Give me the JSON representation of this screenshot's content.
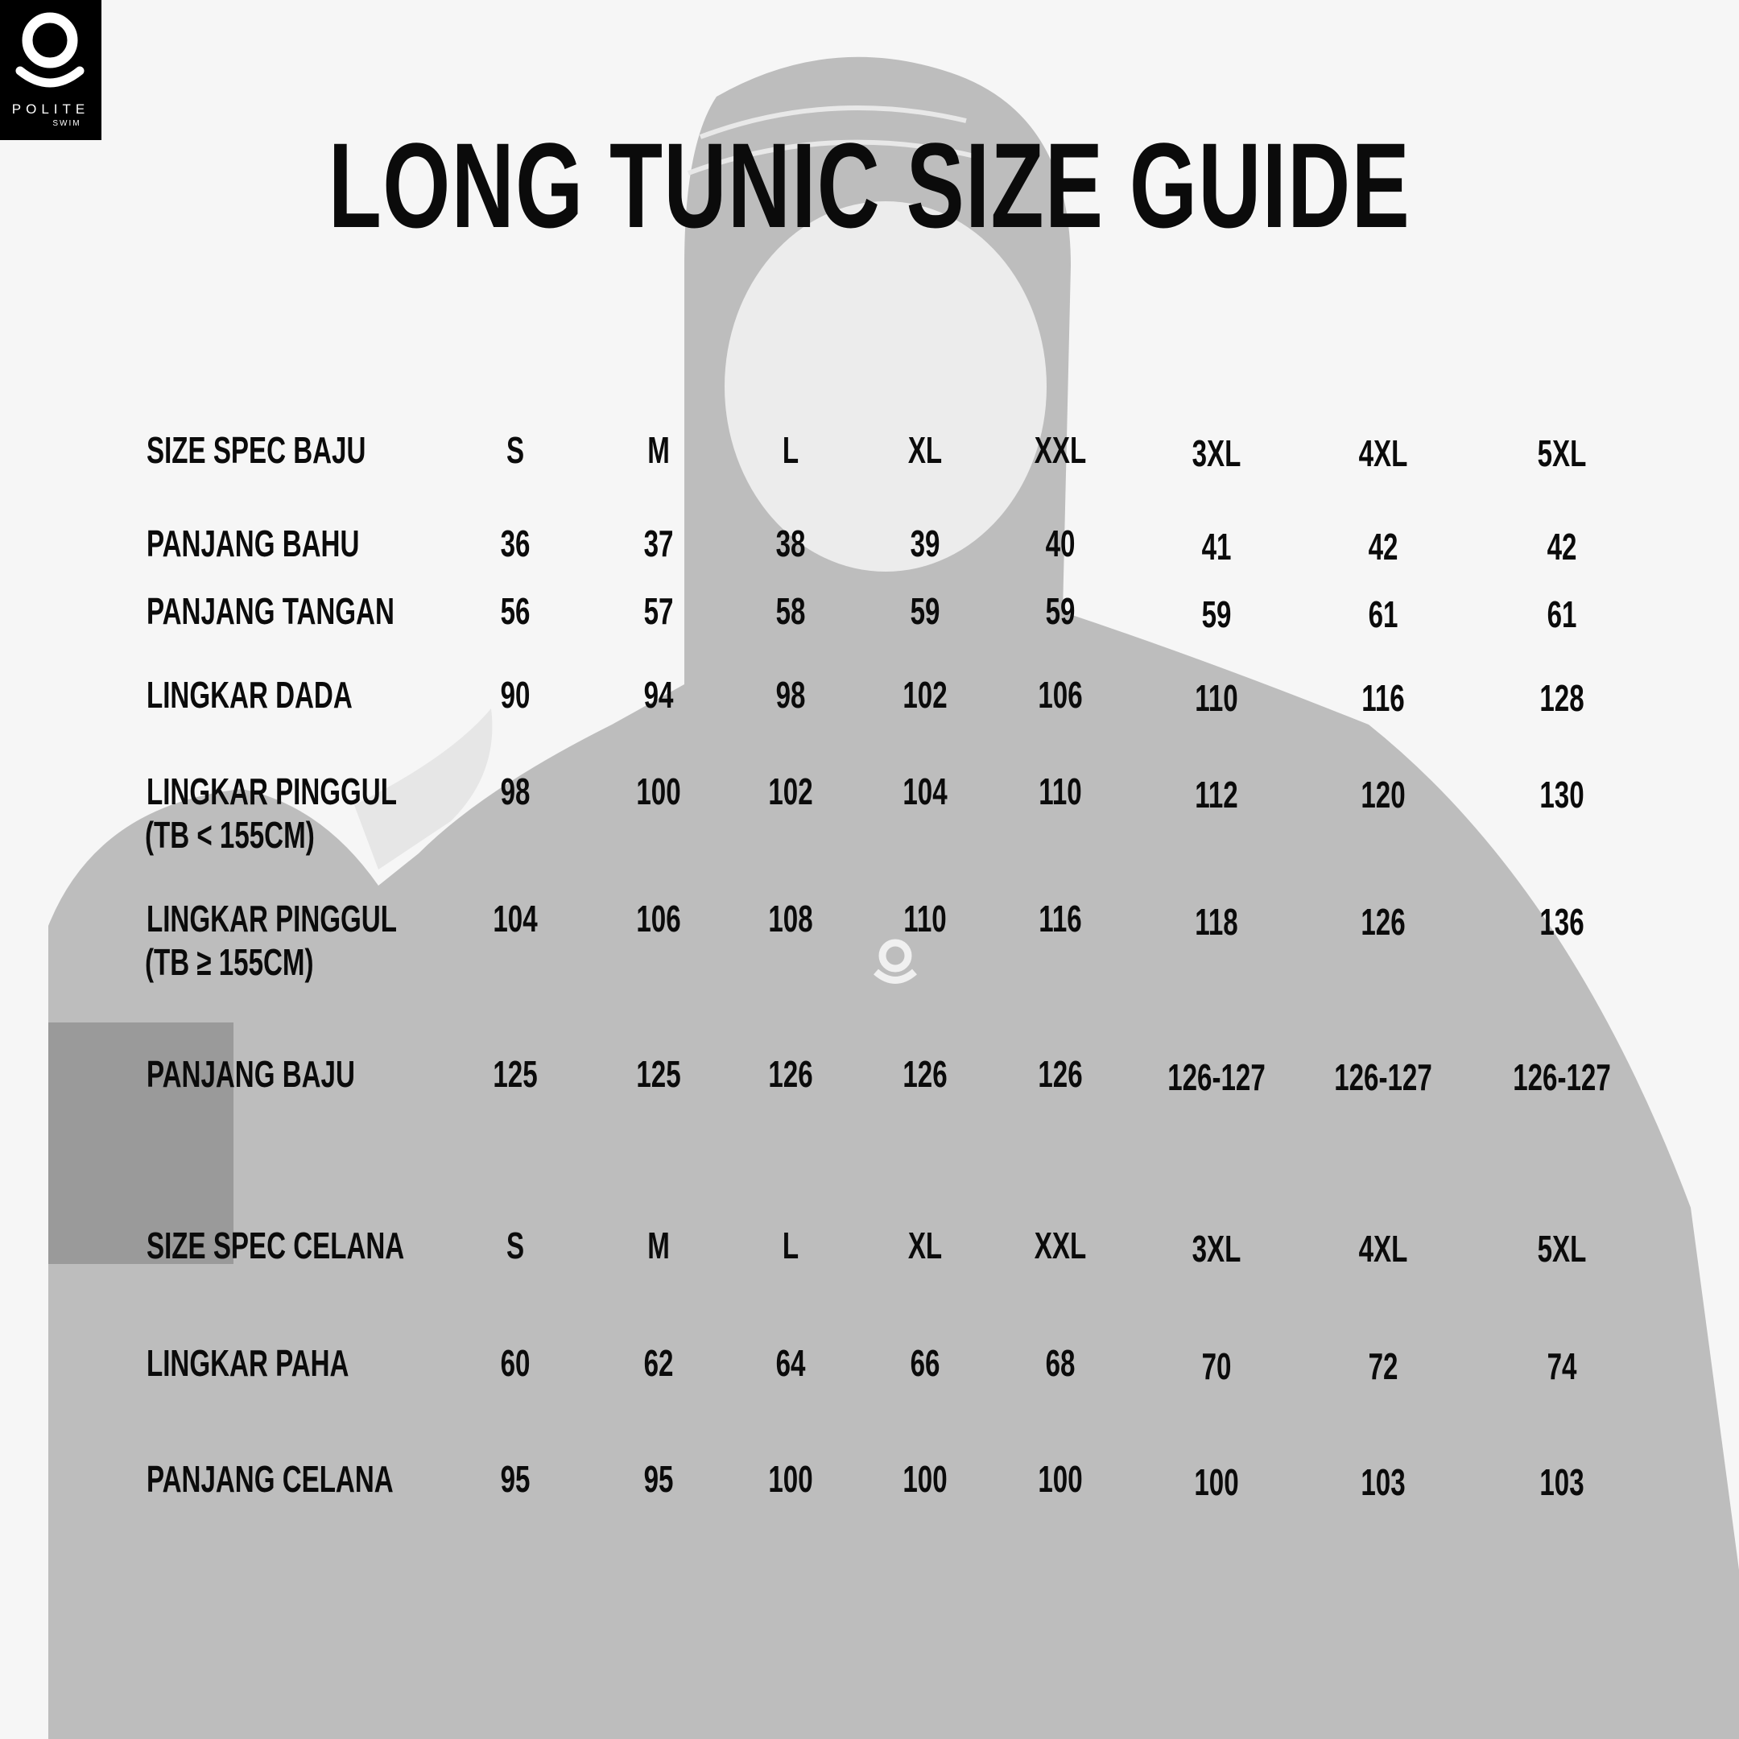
{
  "brand": {
    "name": "POLITE",
    "sub": "SWIM"
  },
  "title": "LONG TUNIC SIZE GUIDE",
  "colors": {
    "background": "#f6f6f6",
    "text": "#0b0b0b",
    "garment": "#bdbdbd",
    "logo_bg": "#000000"
  },
  "baju": {
    "header": "SIZE SPEC BAJU",
    "sizes": [
      "S",
      "M",
      "L",
      "XL",
      "XXL",
      "3XL",
      "4XL",
      "5XL"
    ],
    "rows": [
      {
        "label": "PANJANG BAHU",
        "values": [
          "36",
          "37",
          "38",
          "39",
          "40",
          "41",
          "42",
          "42"
        ]
      },
      {
        "label": "PANJANG TANGAN",
        "values": [
          "56",
          "57",
          "58",
          "59",
          "59",
          "59",
          "61",
          "61"
        ]
      },
      {
        "label": "LINGKAR DADA",
        "values": [
          "90",
          "94",
          "98",
          "102",
          "106",
          "110",
          "116",
          "128"
        ]
      },
      {
        "label": "LINGKAR PINGGUL",
        "sublabel": "(TB < 155CM)",
        "values": [
          "98",
          "100",
          "102",
          "104",
          "110",
          "112",
          "120",
          "130"
        ]
      },
      {
        "label": "LINGKAR PINGGUL",
        "sublabel": "(TB ≥ 155CM)",
        "values": [
          "104",
          "106",
          "108",
          "110",
          "116",
          "118",
          "126",
          "136"
        ]
      },
      {
        "label": "PANJANG BAJU",
        "values": [
          "125",
          "125",
          "126",
          "126",
          "126",
          "126-127",
          "126-127",
          "126-127"
        ]
      }
    ]
  },
  "celana": {
    "header": "SIZE SPEC CELANA",
    "sizes": [
      "S",
      "M",
      "L",
      "XL",
      "XXL",
      "3XL",
      "4XL",
      "5XL"
    ],
    "rows": [
      {
        "label": "LINGKAR PAHA",
        "values": [
          "60",
          "62",
          "64",
          "66",
          "68",
          "70",
          "72",
          "74"
        ]
      },
      {
        "label": "PANJANG CELANA",
        "values": [
          "95",
          "95",
          "100",
          "100",
          "100",
          "100",
          "103",
          "103"
        ]
      }
    ]
  }
}
